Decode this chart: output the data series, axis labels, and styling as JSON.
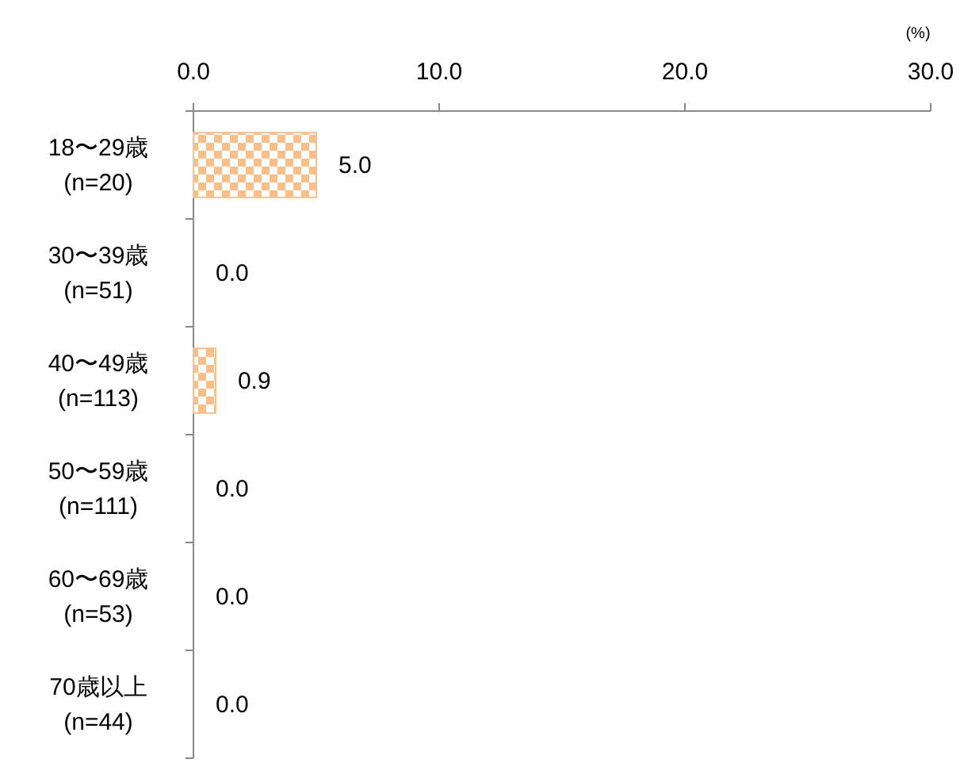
{
  "chart_data": {
    "type": "bar",
    "orientation": "horizontal",
    "xlabel": "(%)",
    "categories": [
      "18〜29歳\n(n=20)",
      "30〜39歳\n(n=51)",
      "40〜49歳\n(n=113)",
      "50〜59歳\n(n=111)",
      "60〜69歳\n(n=53)",
      "70歳以上\n(n=44)"
    ],
    "values": [
      5.0,
      0.0,
      0.9,
      0.0,
      0.0,
      0.0
    ],
    "value_labels": [
      "5.0",
      "0.0",
      "0.9",
      "0.0",
      "0.0",
      "0.0"
    ],
    "color": "#f9bf8a",
    "xlim": [
      0,
      30
    ],
    "xticks": [
      {
        "value": 0,
        "label": "0.0"
      },
      {
        "value": 10,
        "label": "10.0"
      },
      {
        "value": 20,
        "label": "20.0"
      },
      {
        "value": 30,
        "label": "30.0"
      }
    ]
  }
}
